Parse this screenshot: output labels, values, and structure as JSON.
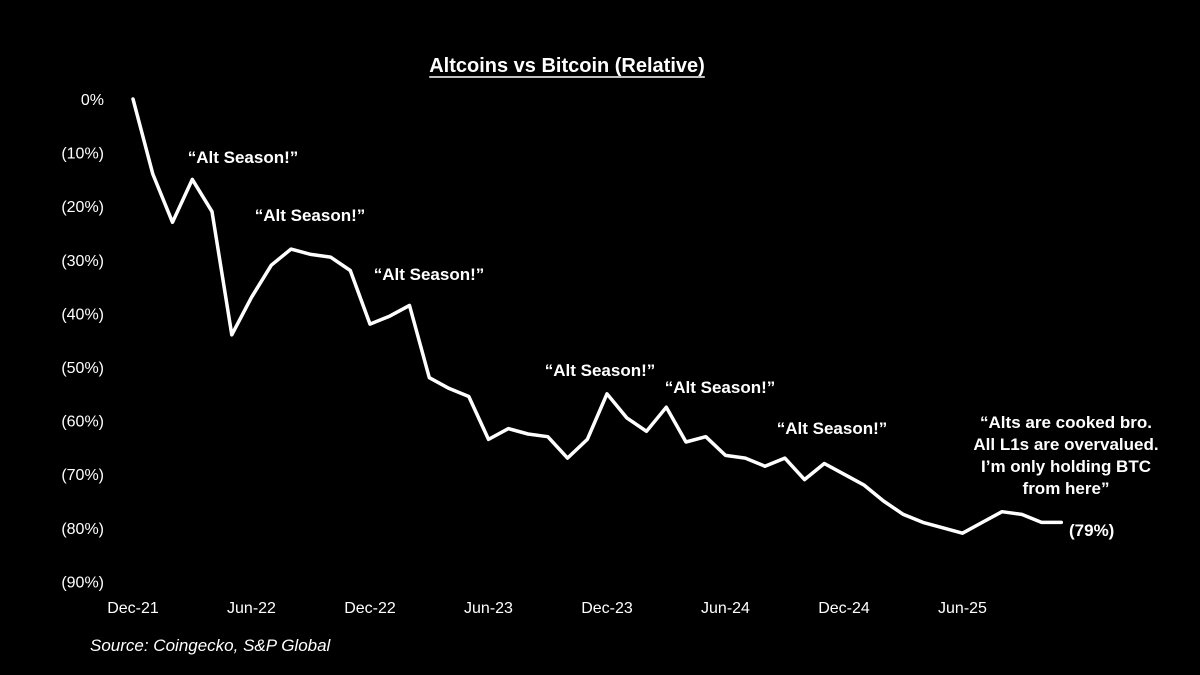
{
  "chart_data": {
    "type": "line",
    "title": "Altcoins vs Bitcoin (Relative)",
    "source": "Source: Coingecko, S&P Global",
    "x_tick_labels": [
      "Dec-21",
      "Jun-22",
      "Dec-22",
      "Jun-23",
      "Dec-23",
      "Jun-24",
      "Dec-24",
      "Jun-25"
    ],
    "y_tick_labels": [
      "0%",
      "(10%)",
      "(20%)",
      "(30%)",
      "(40%)",
      "(50%)",
      "(60%)",
      "(70%)",
      "(80%)",
      "(90%)"
    ],
    "ylim": [
      -90,
      0
    ],
    "grid": false,
    "x": [
      "2021-12",
      "2022-01",
      "2022-02",
      "2022-03",
      "2022-04",
      "2022-05",
      "2022-06",
      "2022-07",
      "2022-08",
      "2022-09",
      "2022-10",
      "2022-11",
      "2022-12",
      "2023-01",
      "2023-02",
      "2023-03",
      "2023-04",
      "2023-05",
      "2023-06",
      "2023-07",
      "2023-08",
      "2023-09",
      "2023-10",
      "2023-11",
      "2023-12",
      "2024-01",
      "2024-02",
      "2024-03",
      "2024-04",
      "2024-05",
      "2024-06",
      "2024-07",
      "2024-08",
      "2024-09",
      "2024-10",
      "2024-11",
      "2024-12",
      "2025-01",
      "2025-02",
      "2025-03",
      "2025-04",
      "2025-05",
      "2025-06",
      "2025-07",
      "2025-08",
      "2025-09",
      "2025-10",
      "2025-11"
    ],
    "series": [
      {
        "values": [
          0,
          -14,
          -23,
          -15,
          -21,
          -44,
          -37,
          -31,
          -28,
          -29,
          -29.5,
          -32,
          -42,
          -40.5,
          -38.5,
          -52,
          -54,
          -55.5,
          -63.5,
          -61.5,
          -62.5,
          -63,
          -67,
          -63.5,
          -55,
          -59.5,
          -62,
          -57.5,
          -64,
          -63,
          -66.5,
          -67,
          -68.5,
          -67,
          -71,
          -68,
          -70,
          -72,
          -75,
          -77.5,
          -79,
          -80,
          -81,
          -79,
          -77,
          -77.5,
          -79,
          -79
        ]
      }
    ],
    "end_label": "(79%)",
    "annotations": [
      {
        "text": "“Alt Season!”"
      },
      {
        "text": "“Alt Season!”"
      },
      {
        "text": "“Alt Season!”"
      },
      {
        "text": "“Alt Season!”"
      },
      {
        "text": "“Alt Season!”"
      },
      {
        "text": "“Alt Season!”"
      },
      {
        "lines": [
          "“Alts are cooked bro.",
          "All L1s are overvalued.",
          "I’m only holding BTC",
          "from here”"
        ]
      }
    ]
  }
}
